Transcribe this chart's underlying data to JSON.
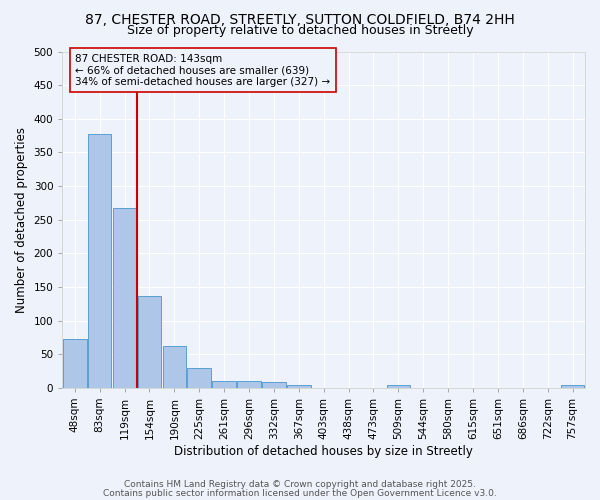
{
  "title1": "87, CHESTER ROAD, STREETLY, SUTTON COLDFIELD, B74 2HH",
  "title2": "Size of property relative to detached houses in Streetly",
  "categories": [
    "48sqm",
    "83sqm",
    "119sqm",
    "154sqm",
    "190sqm",
    "225sqm",
    "261sqm",
    "296sqm",
    "332sqm",
    "367sqm",
    "403sqm",
    "438sqm",
    "473sqm",
    "509sqm",
    "544sqm",
    "580sqm",
    "615sqm",
    "651sqm",
    "686sqm",
    "722sqm",
    "757sqm"
  ],
  "values": [
    73,
    378,
    267,
    137,
    62,
    29,
    10,
    10,
    8,
    4,
    0,
    0,
    0,
    4,
    0,
    0,
    0,
    0,
    0,
    0,
    4
  ],
  "bar_color": "#aec6e8",
  "bar_edge_color": "#5a9fd4",
  "vline_x": 2.5,
  "vline_color": "#cc0000",
  "annotation_line1": "87 CHESTER ROAD: 143sqm",
  "annotation_line2": "← 66% of detached houses are smaller (639)",
  "annotation_line3": "34% of semi-detached houses are larger (327) →",
  "xlabel": "Distribution of detached houses by size in Streetly",
  "ylabel": "Number of detached properties",
  "ylim": [
    0,
    500
  ],
  "yticks": [
    0,
    50,
    100,
    150,
    200,
    250,
    300,
    350,
    400,
    450,
    500
  ],
  "footnote1": "Contains HM Land Registry data © Crown copyright and database right 2025.",
  "footnote2": "Contains public sector information licensed under the Open Government Licence v3.0.",
  "background_color": "#eef2fa",
  "grid_color": "#ffffff",
  "title_fontsize": 10,
  "subtitle_fontsize": 9,
  "axis_label_fontsize": 8.5,
  "tick_fontsize": 7.5,
  "annotation_fontsize": 7.5,
  "footnote_fontsize": 6.5
}
